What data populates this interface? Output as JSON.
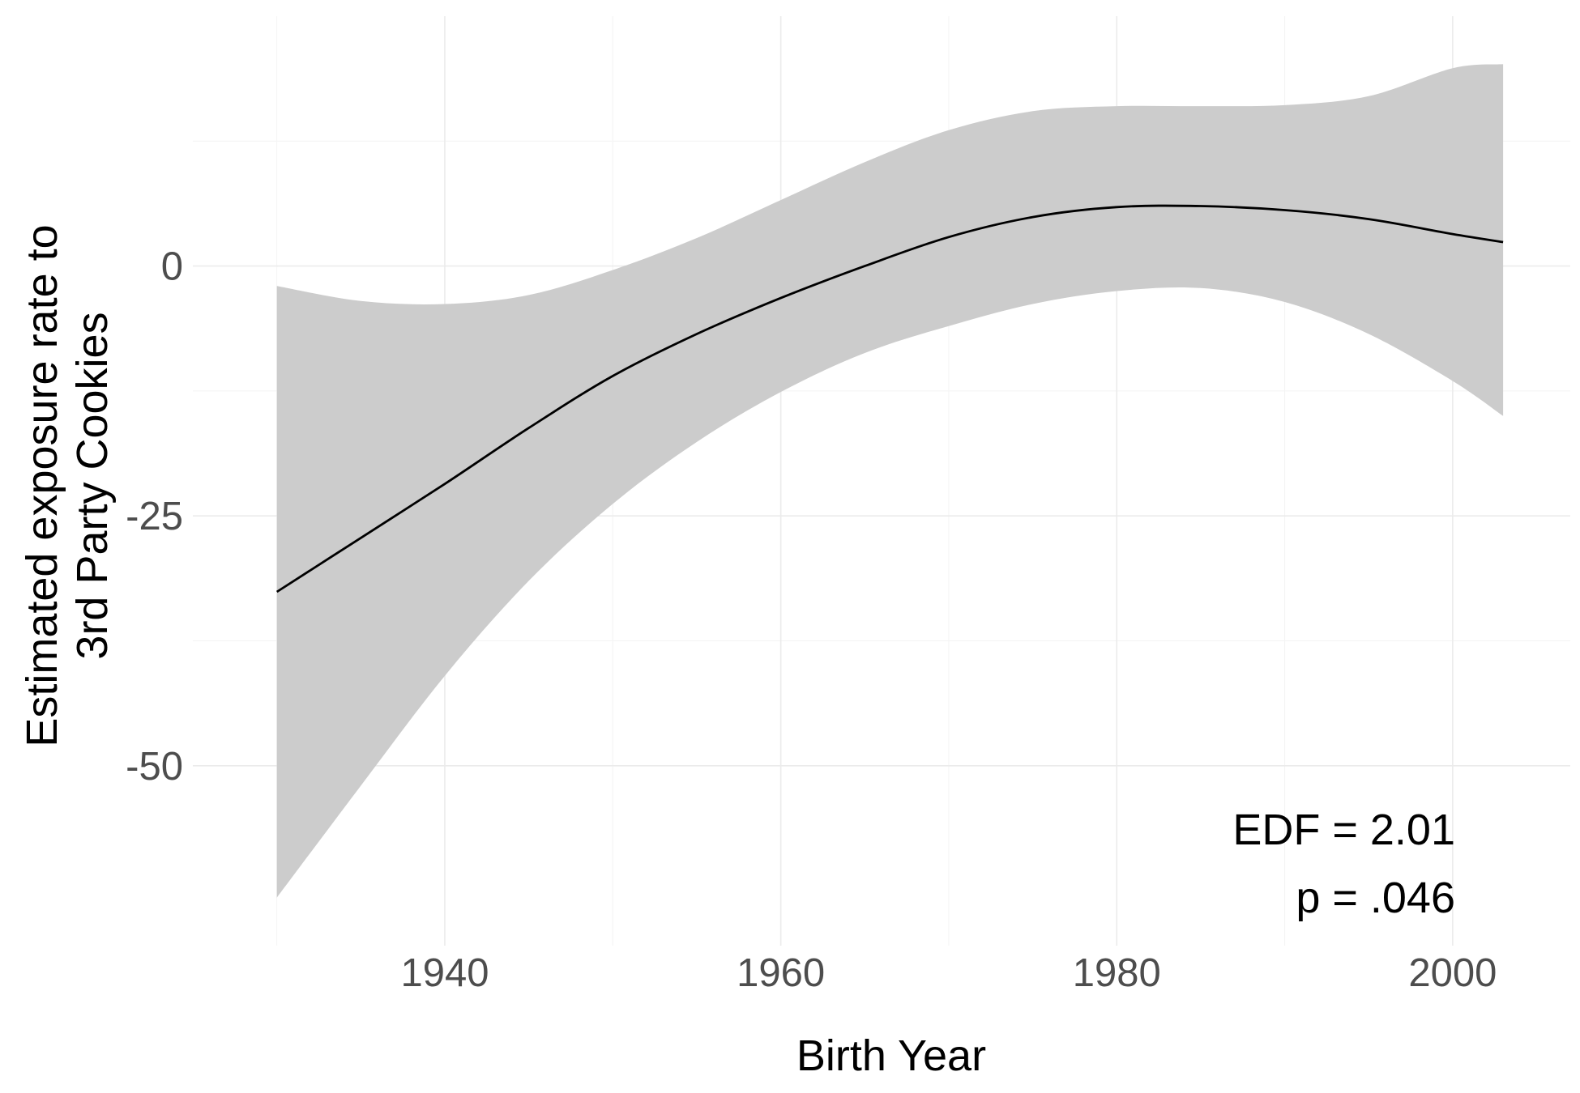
{
  "chart_data": {
    "type": "line",
    "xlabel": "Birth Year",
    "ylabel_lines": [
      "Estimated exposure rate to",
      "3rd Party Cookies"
    ],
    "xlim": [
      1925,
      2007
    ],
    "ylim": [
      -68,
      25
    ],
    "x_ticks": [
      1940,
      1960,
      1980,
      2000
    ],
    "x_tick_labels": [
      "1940",
      "1960",
      "1980",
      "2000"
    ],
    "y_ticks": [
      -50,
      -25,
      0
    ],
    "y_tick_labels": [
      "-50",
      "-25",
      "0"
    ],
    "grid": true,
    "colors": {
      "line": "#000000",
      "ribbon": "#cccccc"
    },
    "series": [
      {
        "x": [
          1930,
          1935,
          1940,
          1945,
          1950,
          1955,
          1960,
          1965,
          1970,
          1975,
          1980,
          1985,
          1990,
          1995,
          2000,
          2003
        ],
        "y": [
          -32.6,
          -27.2,
          -21.8,
          -16.2,
          -11.0,
          -6.8,
          -3.2,
          0.0,
          2.9,
          4.9,
          5.9,
          6.0,
          5.6,
          4.7,
          3.2,
          2.4
        ],
        "lower": [
          -63.2,
          -52.0,
          -41.0,
          -31.5,
          -23.8,
          -17.6,
          -12.6,
          -8.7,
          -6.0,
          -3.8,
          -2.5,
          -2.2,
          -3.6,
          -6.8,
          -11.5,
          -15.0
        ],
        "upper": [
          -2.0,
          -3.5,
          -3.8,
          -2.9,
          -0.4,
          2.8,
          6.6,
          10.4,
          13.6,
          15.5,
          16.0,
          16.0,
          16.1,
          17.0,
          19.8,
          20.2
        ]
      }
    ],
    "annotations": [
      "EDF = 2.01",
      "p = .046"
    ]
  }
}
